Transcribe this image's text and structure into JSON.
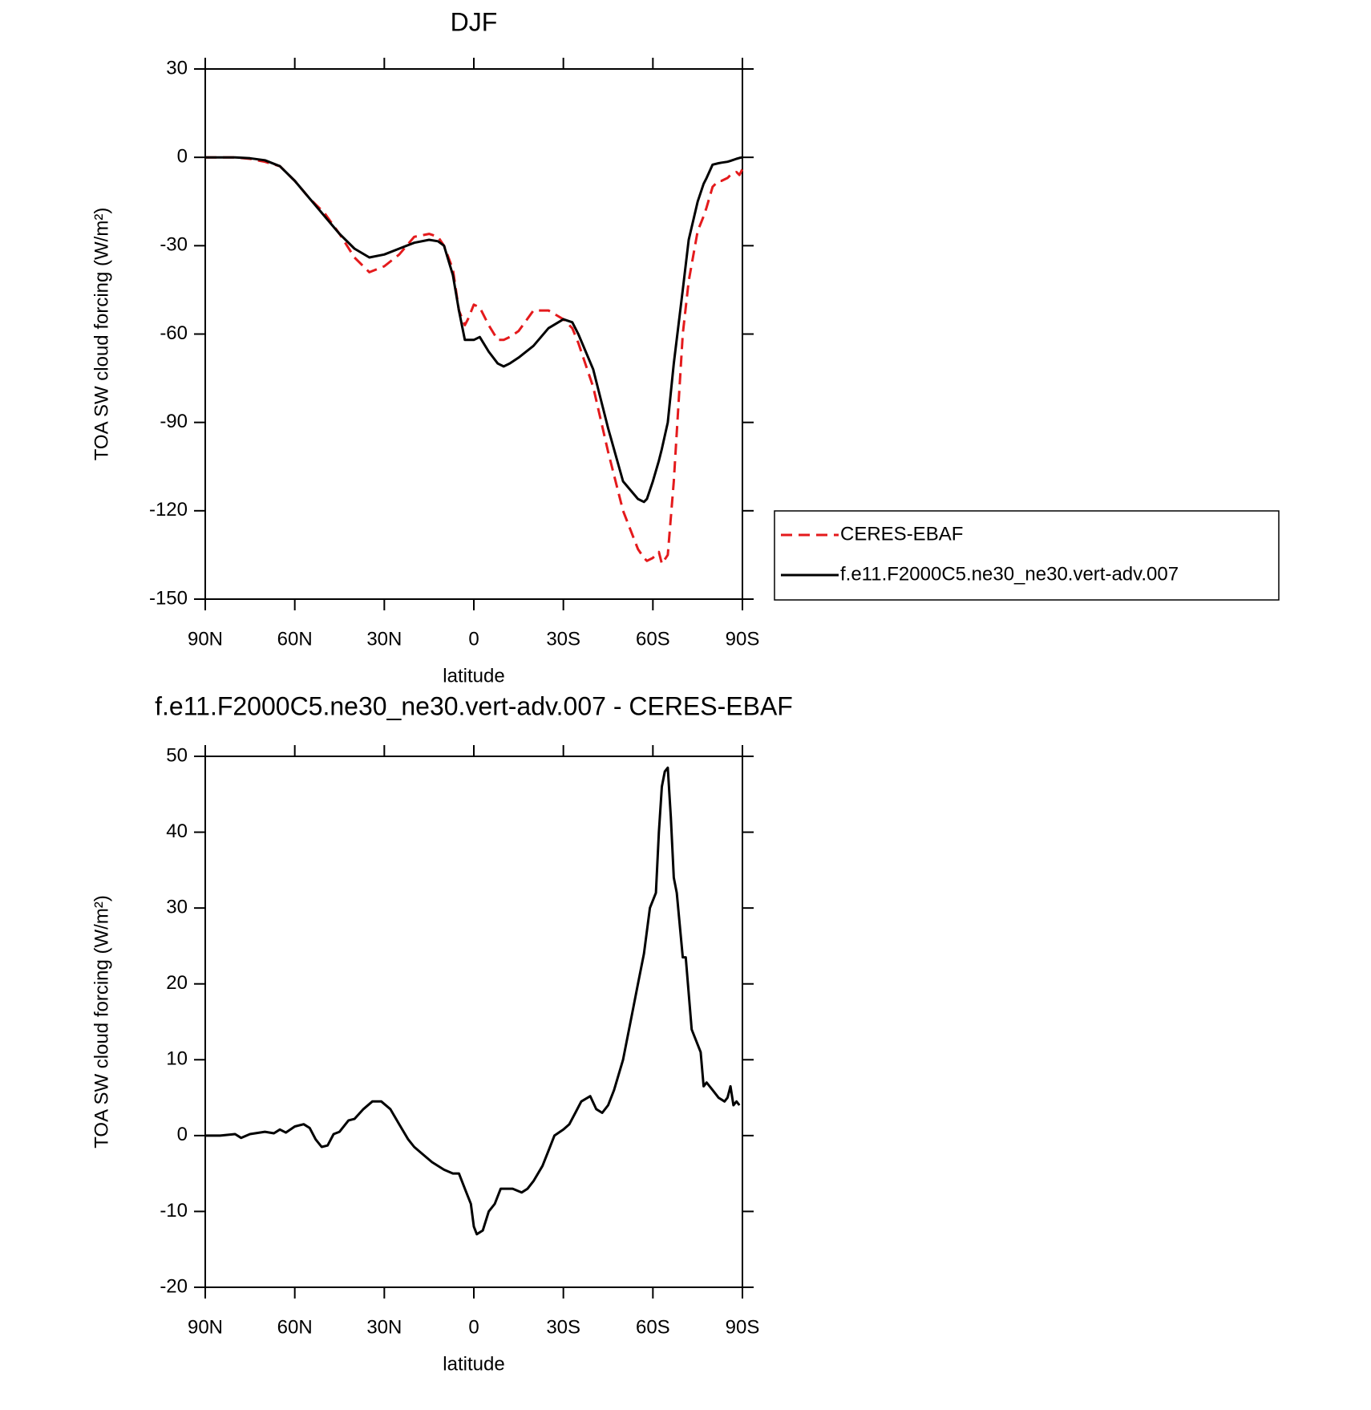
{
  "chart_data": [
    {
      "type": "line",
      "title": "DJF",
      "xlabel": "latitude",
      "ylabel": "TOA SW cloud forcing (W/m²)",
      "x": [
        90,
        85,
        80,
        75,
        70,
        65,
        60,
        55,
        50,
        45,
        40,
        35,
        30,
        25,
        20,
        15,
        12,
        10,
        7,
        5,
        3,
        2,
        0,
        -2,
        -5,
        -8,
        -10,
        -12,
        -15,
        -20,
        -25,
        -30,
        -33,
        -35,
        -40,
        -45,
        -50,
        -55,
        -57,
        -58,
        -60,
        -62,
        -63,
        -65,
        -67,
        -70,
        -72,
        -75,
        -77,
        -78,
        -80,
        -82,
        -83,
        -85,
        -86,
        -88,
        -89,
        -90
      ],
      "series": [
        {
          "name": "CERES-EBAF",
          "color": "#e41a1c",
          "dashed": true,
          "values": [
            0,
            0,
            0,
            -0.5,
            -1.5,
            -3,
            -8,
            -14,
            -19,
            -26,
            -34,
            -39,
            -37,
            -33,
            -27,
            -26,
            -27,
            -30,
            -38,
            -52,
            -57,
            -55,
            -50,
            -51,
            -57,
            -62,
            -62,
            -61,
            -59,
            -52,
            -52,
            -55,
            -58,
            -63,
            -78,
            -100,
            -120,
            -133,
            -136,
            -137,
            -136,
            -134,
            -138,
            -135,
            -110,
            -60,
            -42,
            -25,
            -20,
            -17,
            -10,
            -8,
            -8,
            -7,
            -6,
            -5,
            -6,
            -4
          ]
        },
        {
          "name": "f.e11.F2000C5.ne30_ne30.vert-adv.007",
          "color": "#000000",
          "dashed": false,
          "values": [
            0,
            0,
            0,
            -0.3,
            -1,
            -3,
            -8,
            -14,
            -20,
            -26,
            -31,
            -34,
            -33,
            -31,
            -29,
            -28,
            -28.5,
            -30,
            -40,
            -52,
            -62,
            -62,
            -62,
            -61,
            -66,
            -70,
            -71,
            -70,
            -68,
            -64,
            -58,
            -55,
            -56,
            -60,
            -72,
            -92,
            -110,
            -116,
            -117,
            -116,
            -110,
            -103,
            -99,
            -90,
            -70,
            -45,
            -28,
            -15,
            -9,
            -7,
            -2.5,
            -2,
            -1.8,
            -1.5,
            -1.2,
            -0.5,
            -0.2,
            0
          ]
        }
      ],
      "xlim": [
        90,
        -90
      ],
      "xticks": [
        {
          "value": 90,
          "label": "90N"
        },
        {
          "value": 60,
          "label": "60N"
        },
        {
          "value": 30,
          "label": "30N"
        },
        0,
        {
          "value": -30,
          "label": "30S"
        },
        {
          "value": -60,
          "label": "60S"
        },
        {
          "value": -90,
          "label": "90S"
        }
      ],
      "ylim": [
        -150,
        30
      ],
      "yticks": [
        -150,
        -120,
        -90,
        -60,
        -30,
        0,
        30
      ],
      "legend": "right"
    },
    {
      "type": "line",
      "title": "f.e11.F2000C5.ne30_ne30.vert-adv.007 - CERES-EBAF",
      "xlabel": "latitude",
      "ylabel": "TOA SW cloud forcing (W/m²)",
      "x": [
        90,
        85,
        80,
        78,
        75,
        70,
        67,
        65,
        63,
        60,
        57,
        55,
        53,
        51,
        49,
        47,
        45,
        42,
        40,
        37,
        34,
        31,
        28,
        25,
        22,
        20,
        17,
        14,
        10,
        7,
        5,
        3,
        1,
        0,
        -1,
        -3,
        -5,
        -7,
        -9,
        -13,
        -16,
        -18,
        -20,
        -23,
        -25,
        -27,
        -30,
        -32,
        -34,
        -36,
        -39,
        -41,
        -43,
        -45,
        -47,
        -50,
        -53,
        -55,
        -57,
        -59,
        -61,
        -62,
        -63,
        -64,
        -65,
        -66,
        -67,
        -68,
        -70,
        -71,
        -73,
        -75,
        -76,
        -77,
        -78,
        -80,
        -82,
        -84,
        -85,
        -86,
        -87,
        -88,
        -89
      ],
      "series": [
        {
          "color": "#000000",
          "dashed": false,
          "values": [
            0,
            0,
            0.2,
            -0.3,
            0.2,
            0.5,
            0.3,
            0.8,
            0.4,
            1.2,
            1.5,
            1,
            -0.5,
            -1.5,
            -1.3,
            0.2,
            0.5,
            2,
            2.2,
            3.5,
            4.5,
            4.5,
            3.5,
            1.5,
            -0.5,
            -1.5,
            -2.5,
            -3.5,
            -4.5,
            -5,
            -5,
            -7,
            -9,
            -12,
            -13,
            -12.5,
            -10,
            -9,
            -7,
            -7,
            -7.5,
            -7,
            -6,
            -4,
            -2,
            0,
            0.8,
            1.5,
            3,
            4.5,
            5.2,
            3.5,
            3,
            4,
            6,
            10,
            16,
            20,
            24,
            30,
            32,
            40,
            46,
            48,
            48.5,
            42,
            34,
            32,
            23.5,
            23.5,
            14,
            12,
            11,
            6.5,
            7,
            6,
            5,
            4.5,
            5,
            6.5,
            4,
            4.5,
            4
          ]
        }
      ],
      "xlim": [
        90,
        -90
      ],
      "xticks": [
        {
          "value": 90,
          "label": "90N"
        },
        {
          "value": 60,
          "label": "60N"
        },
        {
          "value": 30,
          "label": "30N"
        },
        0,
        {
          "value": -30,
          "label": "30S"
        },
        {
          "value": -60,
          "label": "60S"
        },
        {
          "value": -90,
          "label": "90S"
        }
      ],
      "ylim": [
        -20,
        50
      ],
      "yticks": [
        -20,
        -10,
        0,
        10,
        20,
        30,
        40,
        50
      ]
    }
  ]
}
